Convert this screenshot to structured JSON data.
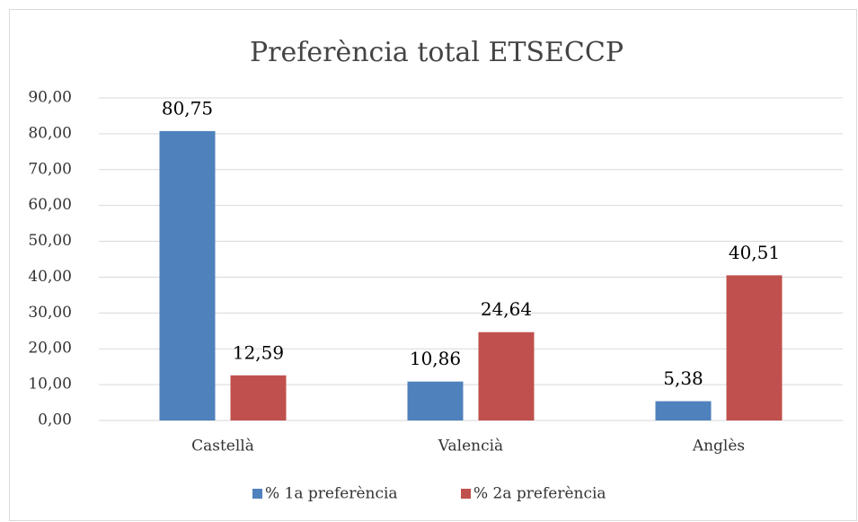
{
  "chart_data": {
    "type": "bar",
    "title": "Preferència total ETSECCP",
    "categories": [
      "Castellà",
      "Valencià",
      "Anglès"
    ],
    "series": [
      {
        "name": "% 1a preferència",
        "color": "#4f81bd",
        "values": [
          80.75,
          10.86,
          5.38
        ],
        "value_labels": [
          "80,75",
          "10,86",
          "5,38"
        ]
      },
      {
        "name": "% 2a preferència",
        "color": "#c0504d",
        "values": [
          12.59,
          24.64,
          40.51
        ],
        "value_labels": [
          "12,59",
          "24,64",
          "40,51"
        ]
      }
    ],
    "ylim": [
      0,
      90
    ],
    "yticks": [
      {
        "value": 0,
        "label": "0,00"
      },
      {
        "value": 10,
        "label": "10,00"
      },
      {
        "value": 20,
        "label": "20,00"
      },
      {
        "value": 30,
        "label": "30,00"
      },
      {
        "value": 40,
        "label": "40,00"
      },
      {
        "value": 50,
        "label": "50,00"
      },
      {
        "value": 60,
        "label": "60,00"
      },
      {
        "value": 70,
        "label": "70,00"
      },
      {
        "value": 80,
        "label": "80,00"
      },
      {
        "value": 90,
        "label": "90,00"
      }
    ],
    "grid": true,
    "legend": "bottom"
  }
}
